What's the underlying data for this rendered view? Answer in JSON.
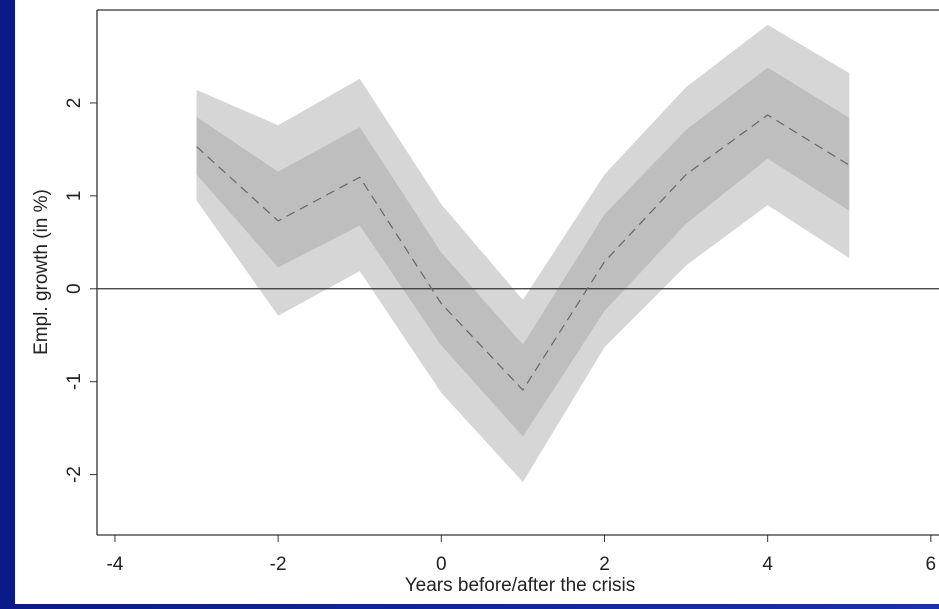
{
  "chart_data": {
    "type": "line",
    "x_label": "Years before/after the crisis",
    "y_label": "Empl. growth (in %)",
    "x": [
      -3,
      -2,
      -1,
      0,
      1,
      2,
      3,
      4,
      5
    ],
    "bands": [
      {
        "color": "#d6d6d6",
        "upper": [
          2.14,
          1.76,
          2.26,
          0.91,
          -0.12,
          1.23,
          2.17,
          2.84,
          2.32
        ],
        "lower": [
          0.95,
          -0.29,
          0.19,
          -1.12,
          -2.08,
          -0.63,
          0.25,
          0.9,
          0.33
        ]
      },
      {
        "color": "#bebebe",
        "upper": [
          1.85,
          1.26,
          1.74,
          0.39,
          -0.6,
          0.8,
          1.71,
          2.38,
          1.84
        ],
        "lower": [
          1.23,
          0.23,
          0.68,
          -0.61,
          -1.59,
          -0.24,
          0.7,
          1.4,
          0.84
        ]
      }
    ],
    "series": [
      {
        "color": "#666666",
        "dashed": true,
        "values": [
          1.53,
          0.73,
          1.2,
          -0.16,
          -1.09,
          0.29,
          1.23,
          1.87,
          1.33
        ]
      }
    ],
    "hline": 0,
    "xlim": [
      -4.22,
      6.1
    ],
    "ylim": [
      -2.65,
      3.0
    ],
    "xticks": [
      -4,
      -2,
      0,
      2,
      4,
      6
    ],
    "yticks": [
      -2,
      -1,
      0,
      1,
      2
    ]
  }
}
